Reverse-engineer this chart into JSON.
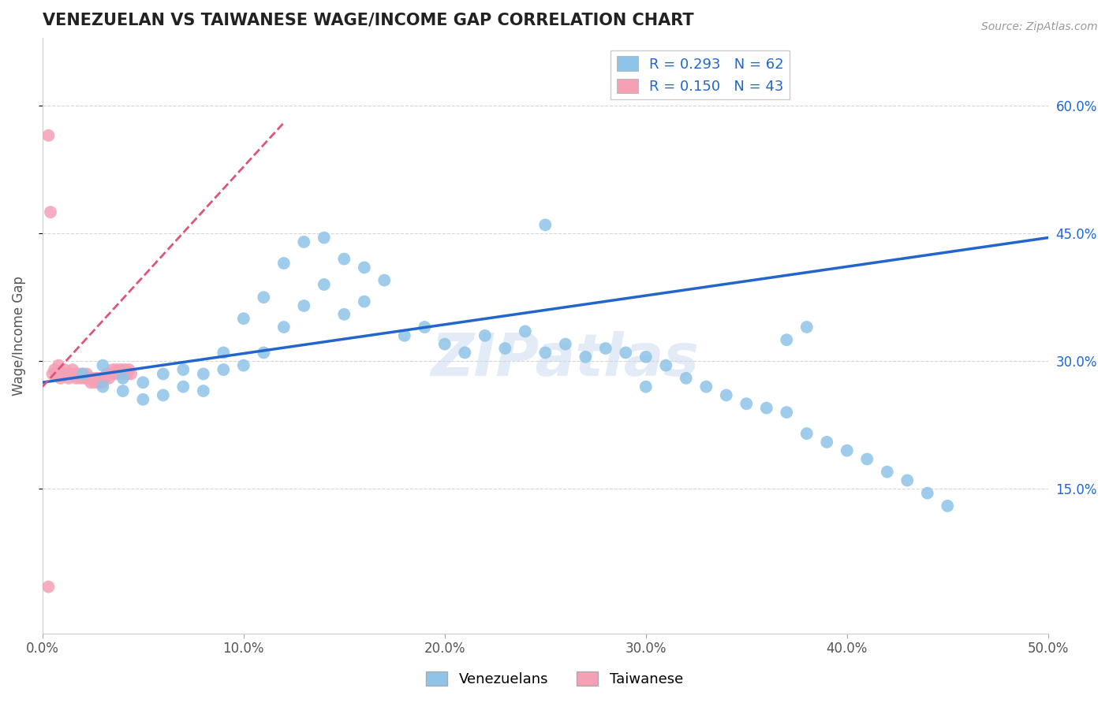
{
  "title": "VENEZUELAN VS TAIWANESE WAGE/INCOME GAP CORRELATION CHART",
  "source": "Source: ZipAtlas.com",
  "ylabel": "Wage/Income Gap",
  "xlim": [
    0.0,
    0.5
  ],
  "ylim": [
    -0.02,
    0.68
  ],
  "x_ticks": [
    0.0,
    0.1,
    0.2,
    0.3,
    0.4,
    0.5
  ],
  "x_tick_labels": [
    "0.0%",
    "10.0%",
    "20.0%",
    "30.0%",
    "40.0%",
    "50.0%"
  ],
  "y_ticks_right": [
    0.15,
    0.3,
    0.45,
    0.6
  ],
  "y_tick_labels_right": [
    "15.0%",
    "30.0%",
    "45.0%",
    "60.0%"
  ],
  "watermark": "ZIPatlas",
  "venezuelan_color": "#8fc4e8",
  "taiwanese_color": "#f4a0b5",
  "venezuelan_R": 0.293,
  "venezuelan_N": 62,
  "taiwanese_R": 0.15,
  "taiwanese_N": 43,
  "blue_line_color": "#2266cc",
  "pink_line_color": "#dd5577",
  "grid_color": "#cccccc",
  "background_color": "#ffffff",
  "venezuelan_x": [
    0.02,
    0.03,
    0.03,
    0.04,
    0.04,
    0.05,
    0.05,
    0.06,
    0.06,
    0.07,
    0.07,
    0.08,
    0.08,
    0.09,
    0.09,
    0.1,
    0.1,
    0.11,
    0.11,
    0.12,
    0.12,
    0.13,
    0.13,
    0.14,
    0.14,
    0.15,
    0.15,
    0.16,
    0.16,
    0.17,
    0.18,
    0.19,
    0.2,
    0.21,
    0.22,
    0.23,
    0.24,
    0.25,
    0.26,
    0.27,
    0.28,
    0.29,
    0.3,
    0.31,
    0.32,
    0.33,
    0.34,
    0.35,
    0.36,
    0.37,
    0.38,
    0.39,
    0.4,
    0.41,
    0.42,
    0.43,
    0.44,
    0.45,
    0.37,
    0.38,
    0.25,
    0.3
  ],
  "venezuelan_y": [
    0.285,
    0.295,
    0.27,
    0.28,
    0.265,
    0.275,
    0.255,
    0.285,
    0.26,
    0.29,
    0.27,
    0.285,
    0.265,
    0.31,
    0.29,
    0.35,
    0.295,
    0.375,
    0.31,
    0.415,
    0.34,
    0.44,
    0.365,
    0.445,
    0.39,
    0.42,
    0.355,
    0.41,
    0.37,
    0.395,
    0.33,
    0.34,
    0.32,
    0.31,
    0.33,
    0.315,
    0.335,
    0.31,
    0.32,
    0.305,
    0.315,
    0.31,
    0.305,
    0.295,
    0.28,
    0.27,
    0.26,
    0.25,
    0.245,
    0.24,
    0.215,
    0.205,
    0.195,
    0.185,
    0.17,
    0.16,
    0.145,
    0.13,
    0.325,
    0.34,
    0.46,
    0.27
  ],
  "taiwanese_x": [
    0.003,
    0.004,
    0.005,
    0.006,
    0.007,
    0.008,
    0.009,
    0.01,
    0.011,
    0.012,
    0.013,
    0.014,
    0.015,
    0.016,
    0.017,
    0.018,
    0.019,
    0.02,
    0.021,
    0.022,
    0.023,
    0.024,
    0.025,
    0.026,
    0.027,
    0.028,
    0.029,
    0.03,
    0.031,
    0.032,
    0.033,
    0.034,
    0.035,
    0.036,
    0.037,
    0.038,
    0.039,
    0.04,
    0.041,
    0.042,
    0.043,
    0.044,
    0.003
  ],
  "taiwanese_y": [
    0.565,
    0.475,
    0.285,
    0.29,
    0.285,
    0.295,
    0.28,
    0.285,
    0.29,
    0.285,
    0.28,
    0.285,
    0.29,
    0.285,
    0.28,
    0.285,
    0.28,
    0.285,
    0.28,
    0.285,
    0.28,
    0.275,
    0.28,
    0.275,
    0.28,
    0.275,
    0.28,
    0.275,
    0.28,
    0.285,
    0.28,
    0.285,
    0.29,
    0.285,
    0.29,
    0.285,
    0.29,
    0.285,
    0.29,
    0.285,
    0.29,
    0.285,
    0.035
  ],
  "ven_trendline_x": [
    0.0,
    0.5
  ],
  "ven_trendline_y": [
    0.275,
    0.445
  ],
  "tai_trendline_x": [
    0.0,
    0.12
  ],
  "tai_trendline_y": [
    0.27,
    0.58
  ]
}
